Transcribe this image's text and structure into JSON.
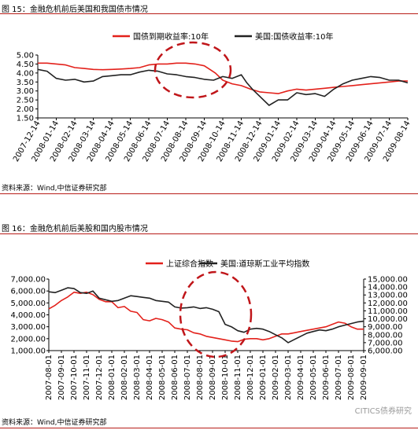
{
  "figures": [
    {
      "title": "图 15：金融危机前后美国和我国债市情况",
      "source": "资料来源：Wind,中信证券研究部"
    },
    {
      "title": "图 16：金融危机前后美股和国内股市情况",
      "source": "资料来源：Wind,中信证券研究部"
    }
  ],
  "watermark": "CITICS债券研究",
  "colors": {
    "red": "#e3211b",
    "black": "#222222",
    "rule": "#b81d18",
    "circle": "#c0161a"
  },
  "chart_data": [
    {
      "type": "line",
      "title": "",
      "xlabel": "",
      "ylabel": "",
      "ylim": [
        1.5,
        5.0
      ],
      "yticks": [
        "5.00",
        "4.50",
        "4.00",
        "3.50",
        "3.00",
        "2.50",
        "2.00",
        "1.50"
      ],
      "grid": false,
      "legend_position": "top",
      "x_labels": [
        "2007-12-14",
        "2008-01-14",
        "2008-02-14",
        "2008-03-14",
        "2008-04-14",
        "2008-05-14",
        "2008-06-14",
        "2008-07-14",
        "2008-08-14",
        "2008-09-14",
        "2008-10-14",
        "2008-11-14",
        "2008-12-14",
        "2009-01-14",
        "2009-02-14",
        "2009-03-14",
        "2009-04-14",
        "2009-05-14",
        "2009-06-14",
        "2009-07-14",
        "2009-08-14"
      ],
      "series": [
        {
          "name": "国债到期收益率:10年",
          "color": "#e3211b",
          "x": [
            0,
            0.5,
            1,
            1.5,
            2,
            2.5,
            3,
            3.5,
            4,
            4.5,
            5,
            5.5,
            6,
            6.5,
            7,
            7.5,
            8,
            8.5,
            9,
            9.3,
            9.6,
            10,
            10.5,
            11,
            11.5,
            12,
            12.5,
            13,
            13.5,
            14,
            14.5,
            15,
            15.5,
            16,
            16.5,
            17,
            17.5,
            18,
            18.5,
            19,
            19.5,
            20
          ],
          "values": [
            4.55,
            4.55,
            4.5,
            4.45,
            4.3,
            4.25,
            4.2,
            4.18,
            4.2,
            4.22,
            4.25,
            4.3,
            4.45,
            4.5,
            4.5,
            4.55,
            4.55,
            4.5,
            4.4,
            4.2,
            4.0,
            3.6,
            3.4,
            3.3,
            3.1,
            2.95,
            2.9,
            2.85,
            3.0,
            3.1,
            3.05,
            3.1,
            3.15,
            3.2,
            3.25,
            3.3,
            3.35,
            3.4,
            3.45,
            3.5,
            3.55,
            3.55
          ]
        },
        {
          "name": "美国:国债收益率:10年",
          "color": "#222222",
          "x": [
            0,
            0.5,
            1,
            1.5,
            2,
            2.5,
            3,
            3.5,
            4,
            4.5,
            5,
            5.5,
            6,
            6.5,
            7,
            7.5,
            8,
            8.5,
            9,
            9.5,
            10,
            10.5,
            11,
            11.3,
            11.6,
            12,
            12.5,
            13,
            13.5,
            14,
            14.5,
            15,
            15.5,
            16,
            16.5,
            17,
            17.5,
            18,
            18.5,
            19,
            19.5,
            20
          ],
          "values": [
            4.2,
            4.1,
            3.7,
            3.6,
            3.65,
            3.5,
            3.55,
            3.8,
            3.85,
            3.9,
            3.9,
            4.05,
            4.15,
            4.1,
            3.95,
            3.9,
            3.8,
            3.75,
            3.65,
            3.6,
            3.8,
            3.7,
            3.9,
            3.45,
            3.1,
            2.7,
            2.2,
            2.5,
            2.5,
            2.9,
            2.8,
            2.85,
            2.7,
            3.1,
            3.4,
            3.6,
            3.7,
            3.8,
            3.75,
            3.6,
            3.6,
            3.45
          ]
        }
      ]
    },
    {
      "type": "line",
      "title": "",
      "xlabel": "",
      "ylabel": "",
      "ylim_left": [
        1000,
        7000
      ],
      "ylim_right": [
        6000,
        15000
      ],
      "yticks_left": [
        "7,000.00",
        "6,000.00",
        "5,000.00",
        "4,000.00",
        "3,000.00",
        "2,000.00",
        "1,000.00"
      ],
      "yticks_right": [
        "15,000.00",
        "14,000.00",
        "13,000.00",
        "12,000.00",
        "11,000.00",
        "10,000.00",
        "9,000.00",
        "8,000.00",
        "7,000.00",
        "6,000.00"
      ],
      "grid": false,
      "legend_position": "top",
      "x_labels": [
        "2007-08-01",
        "2007-09-01",
        "2007-10-01",
        "2007-11-01",
        "2007-12-01",
        "2008-01-01",
        "2008-02-01",
        "2008-03-01",
        "2008-04-01",
        "2008-05-01",
        "2008-06-01",
        "2008-07-01",
        "2008-08-01",
        "2008-09-01",
        "2008-10-01",
        "2008-11-01",
        "2008-12-01",
        "2009-01-01",
        "2009-02-01",
        "2009-03-01",
        "2009-04-01",
        "2009-05-01",
        "2009-06-01",
        "2009-07-01",
        "2009-08-01",
        "2009-09-01"
      ],
      "series": [
        {
          "name": "上证综合指数",
          "color": "#e3211b",
          "axis": "left",
          "x": [
            0,
            0.5,
            1,
            1.5,
            2,
            2.5,
            3,
            3.5,
            4,
            4.5,
            5,
            5.5,
            6,
            6.5,
            7,
            7.5,
            8,
            8.5,
            9,
            9.5,
            10,
            10.5,
            11,
            11.5,
            12,
            12.5,
            13,
            13.5,
            14,
            14.5,
            15,
            15.5,
            16,
            16.5,
            17,
            17.5,
            18,
            18.5,
            19,
            19.5,
            20,
            20.5,
            21,
            21.5,
            22,
            22.5,
            23,
            23.5,
            24,
            24.5,
            25
          ],
          "values": [
            4500,
            4800,
            5200,
            5500,
            5900,
            5800,
            5900,
            5700,
            5300,
            5100,
            5100,
            4600,
            4700,
            4300,
            4200,
            3600,
            3500,
            3700,
            3600,
            3400,
            2900,
            2800,
            2750,
            2500,
            2400,
            2200,
            2100,
            2000,
            1900,
            1800,
            1750,
            1950,
            2000,
            2000,
            1900,
            2000,
            2200,
            2400,
            2400,
            2500,
            2600,
            2700,
            2800,
            2900,
            3000,
            3200,
            3400,
            3300,
            3000,
            2800,
            2800
          ]
        },
        {
          "name": "美国:道琼斯工业平均指数",
          "color": "#222222",
          "axis": "right",
          "x": [
            0,
            0.5,
            1,
            1.5,
            2,
            2.5,
            3,
            3.5,
            4,
            4.5,
            5,
            5.5,
            6,
            6.5,
            7,
            7.5,
            8,
            8.5,
            9,
            9.5,
            10,
            10.5,
            11,
            11.5,
            12,
            12.5,
            13,
            13.5,
            14,
            14.5,
            15,
            15.5,
            16,
            16.5,
            17,
            17.5,
            18,
            18.5,
            19,
            19.5,
            20,
            20.5,
            21,
            21.5,
            22,
            22.5,
            23,
            23.5,
            24,
            24.5,
            25
          ],
          "values": [
            13400,
            13300,
            13600,
            13900,
            13800,
            13300,
            13200,
            13500,
            12600,
            12400,
            12200,
            12300,
            12600,
            12900,
            12800,
            12700,
            12600,
            12300,
            12200,
            12100,
            11500,
            11350,
            11400,
            11500,
            11300,
            11400,
            11200,
            10900,
            9300,
            9000,
            8500,
            8300,
            8700,
            8800,
            8700,
            8400,
            8000,
            7600,
            7000,
            7400,
            7800,
            8200,
            8400,
            8600,
            8500,
            8700,
            9000,
            9200,
            9400,
            9600,
            9700
          ]
        }
      ]
    }
  ]
}
